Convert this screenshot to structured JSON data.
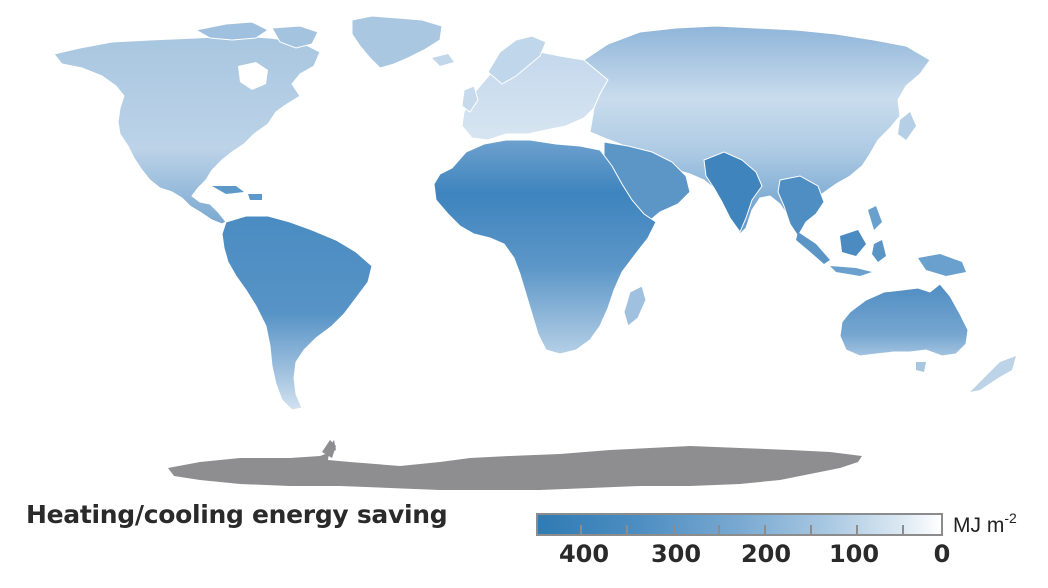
{
  "legend": {
    "title": "Heating/cooling energy saving",
    "unit_base": "MJ m",
    "unit_exponent": "-2",
    "ticks": [
      "400",
      "300",
      "200",
      "100",
      "0"
    ],
    "color_low": "#ffffff",
    "color_high": "#2f7bb3"
  },
  "map": {
    "land_no_data_color": "#8e8e90",
    "border_color": "#ffffff"
  }
}
